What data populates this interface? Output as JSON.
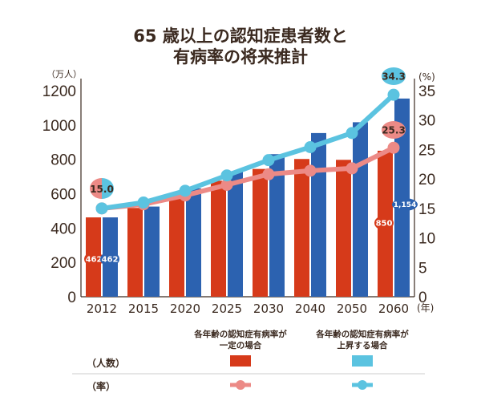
{
  "chart_data": {
    "type": "bar+line",
    "title_line1": "65 歳以上の認知症患者数と",
    "title_line2": "有病率の将来推計",
    "left_unit": "（万人）",
    "right_unit": "(%)",
    "x_unit": "(年)",
    "categories": [
      "2012",
      "2015",
      "2020",
      "2025",
      "2030",
      "2040",
      "2050",
      "2060"
    ],
    "left_axis": {
      "ylim": [
        0,
        1200
      ],
      "ticks": [
        0,
        200,
        400,
        600,
        800,
        1000,
        1200
      ]
    },
    "right_axis": {
      "ylim": [
        0,
        35
      ],
      "ticks": [
        0,
        5,
        10,
        15,
        20,
        25,
        30,
        35
      ]
    },
    "bar_series": [
      {
        "name": "各年齢の認知症有病率が一定の場合",
        "color": "#d63a1a",
        "values": [
          462,
          517,
          602,
          675,
          744,
          802,
          797,
          850
        ]
      },
      {
        "name": "各年齢の認知症有病率が上昇する場合",
        "color": "#2c62b0",
        "values": [
          462,
          525,
          631,
          730,
          830,
          953,
          1016,
          1154
        ]
      }
    ],
    "line_series": [
      {
        "name": "各年齢の認知症有病率が一定の場合",
        "color": "#ec8a86",
        "values": [
          15.0,
          15.7,
          17.2,
          19.0,
          20.8,
          21.4,
          21.8,
          25.3
        ]
      },
      {
        "name": "各年齢の認知症有病率が上昇する場合",
        "color": "#5bc3e0",
        "values": [
          15.0,
          16.0,
          18.0,
          20.6,
          23.2,
          25.4,
          27.8,
          34.3
        ]
      }
    ],
    "data_labels": {
      "bar_red_2012": "462",
      "bar_blue_2012": "462",
      "bar_red_2060": "850",
      "bar_blue_2060": "1,154",
      "rate_2012": "15.0",
      "rate_red_2060": "25.3",
      "rate_blue_2060": "34.3"
    },
    "legend": {
      "col1": [
        "各年齢の認知症有病率が",
        "一定の場合"
      ],
      "col2": [
        "各年齢の認知症有病率が",
        "上昇する場合"
      ],
      "row_count": "（人数）",
      "row_rate": "（率）",
      "count_swatch_colors": [
        "#d63a1a",
        "#5bc3e0"
      ]
    },
    "grid": false
  }
}
